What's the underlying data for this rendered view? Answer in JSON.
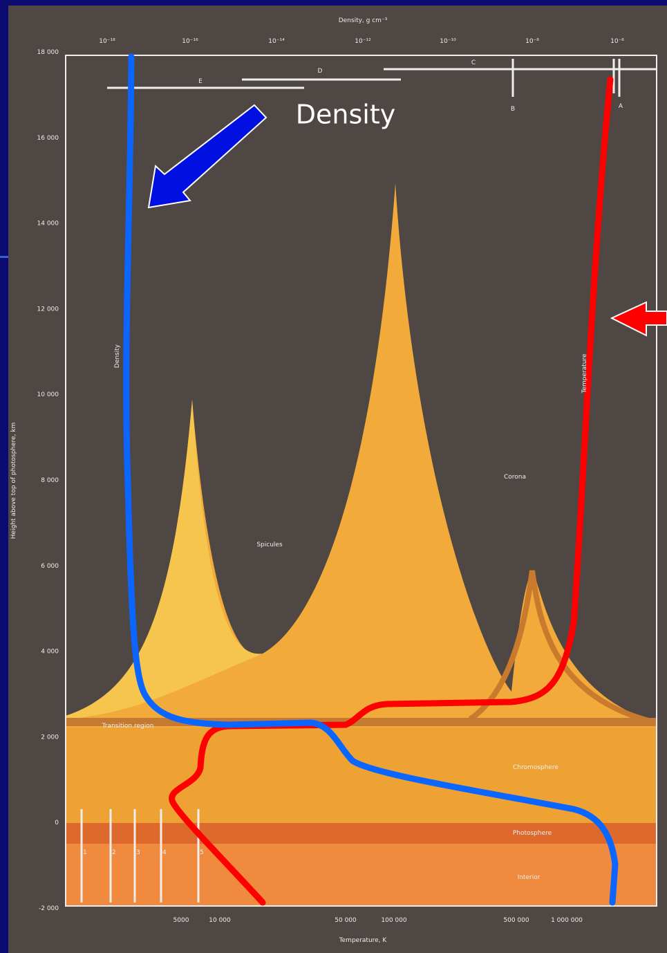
{
  "title": "Density, g cm⁻³",
  "top_ticks": [
    "10⁻¹⁸",
    "10⁻¹⁶",
    "10⁻¹⁴",
    "10⁻¹²",
    "10⁻¹⁰",
    "10⁻⁸",
    "10⁻⁶"
  ],
  "left_ticks": [
    "18 000",
    "16 000",
    "14 000",
    "12 000",
    "10 000",
    "8 000",
    "6 000",
    "4 000",
    "2 000",
    "0",
    "-2 000"
  ],
  "left_label": "Height above top of photosphere, km",
  "bottom_ticks": [
    "5000",
    "10 000",
    "50 000",
    "100 000",
    "500 000",
    "1 000 000"
  ],
  "bottom_label": "Temperature, K",
  "regions": [
    "Spicules",
    "Corona",
    "Transition region",
    "Chromosphere",
    "Photosphere",
    "Interior"
  ],
  "letters": [
    "E",
    "D",
    "C",
    "B",
    "A"
  ],
  "lines": [
    "1",
    "2",
    "3",
    "4",
    "5"
  ],
  "curve_labels": [
    "Density",
    "Temperature"
  ],
  "overlay_label": "Density"
}
